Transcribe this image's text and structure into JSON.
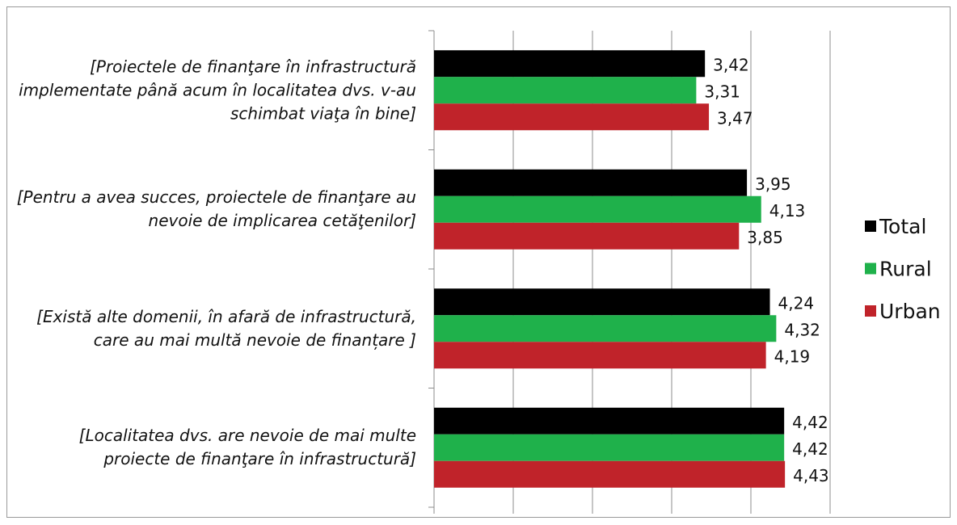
{
  "chart_data": {
    "type": "bar",
    "orientation": "horizontal",
    "categories": [
      "[Proiectele de finanţare în infrastructură implementate până acum în localitatea dvs. v-au schimbat viaţa în bine]",
      "[Pentru a avea succes, proiectele de finanţare au nevoie de implicarea cetăţenilor]",
      "[Există alte domenii, în afară de infrastructură, care au mai multă nevoie de finanțare ]",
      "[Localitatea dvs. are nevoie de mai multe proiecte de finanţare în infrastructură]"
    ],
    "series": [
      {
        "name": "Total",
        "color": "#000000",
        "values": [
          3.42,
          3.95,
          4.24,
          4.42
        ],
        "value_labels": [
          "3,42",
          "3,95",
          "4,24",
          "4,42"
        ]
      },
      {
        "name": "Rural",
        "color": "#1fb14b",
        "values": [
          3.31,
          4.13,
          4.32,
          4.42
        ],
        "value_labels": [
          "3,31",
          "4,13",
          "4,32",
          "4,42"
        ]
      },
      {
        "name": "Urban",
        "color": "#c0232a",
        "values": [
          3.47,
          3.85,
          4.19,
          4.43
        ],
        "value_labels": [
          "3,47",
          "3,85",
          "4,19",
          "4,43"
        ]
      }
    ],
    "xlim": [
      0,
      5
    ],
    "xticks": [
      0,
      1,
      2,
      3,
      4,
      5
    ],
    "grid": true,
    "legend": "right"
  }
}
